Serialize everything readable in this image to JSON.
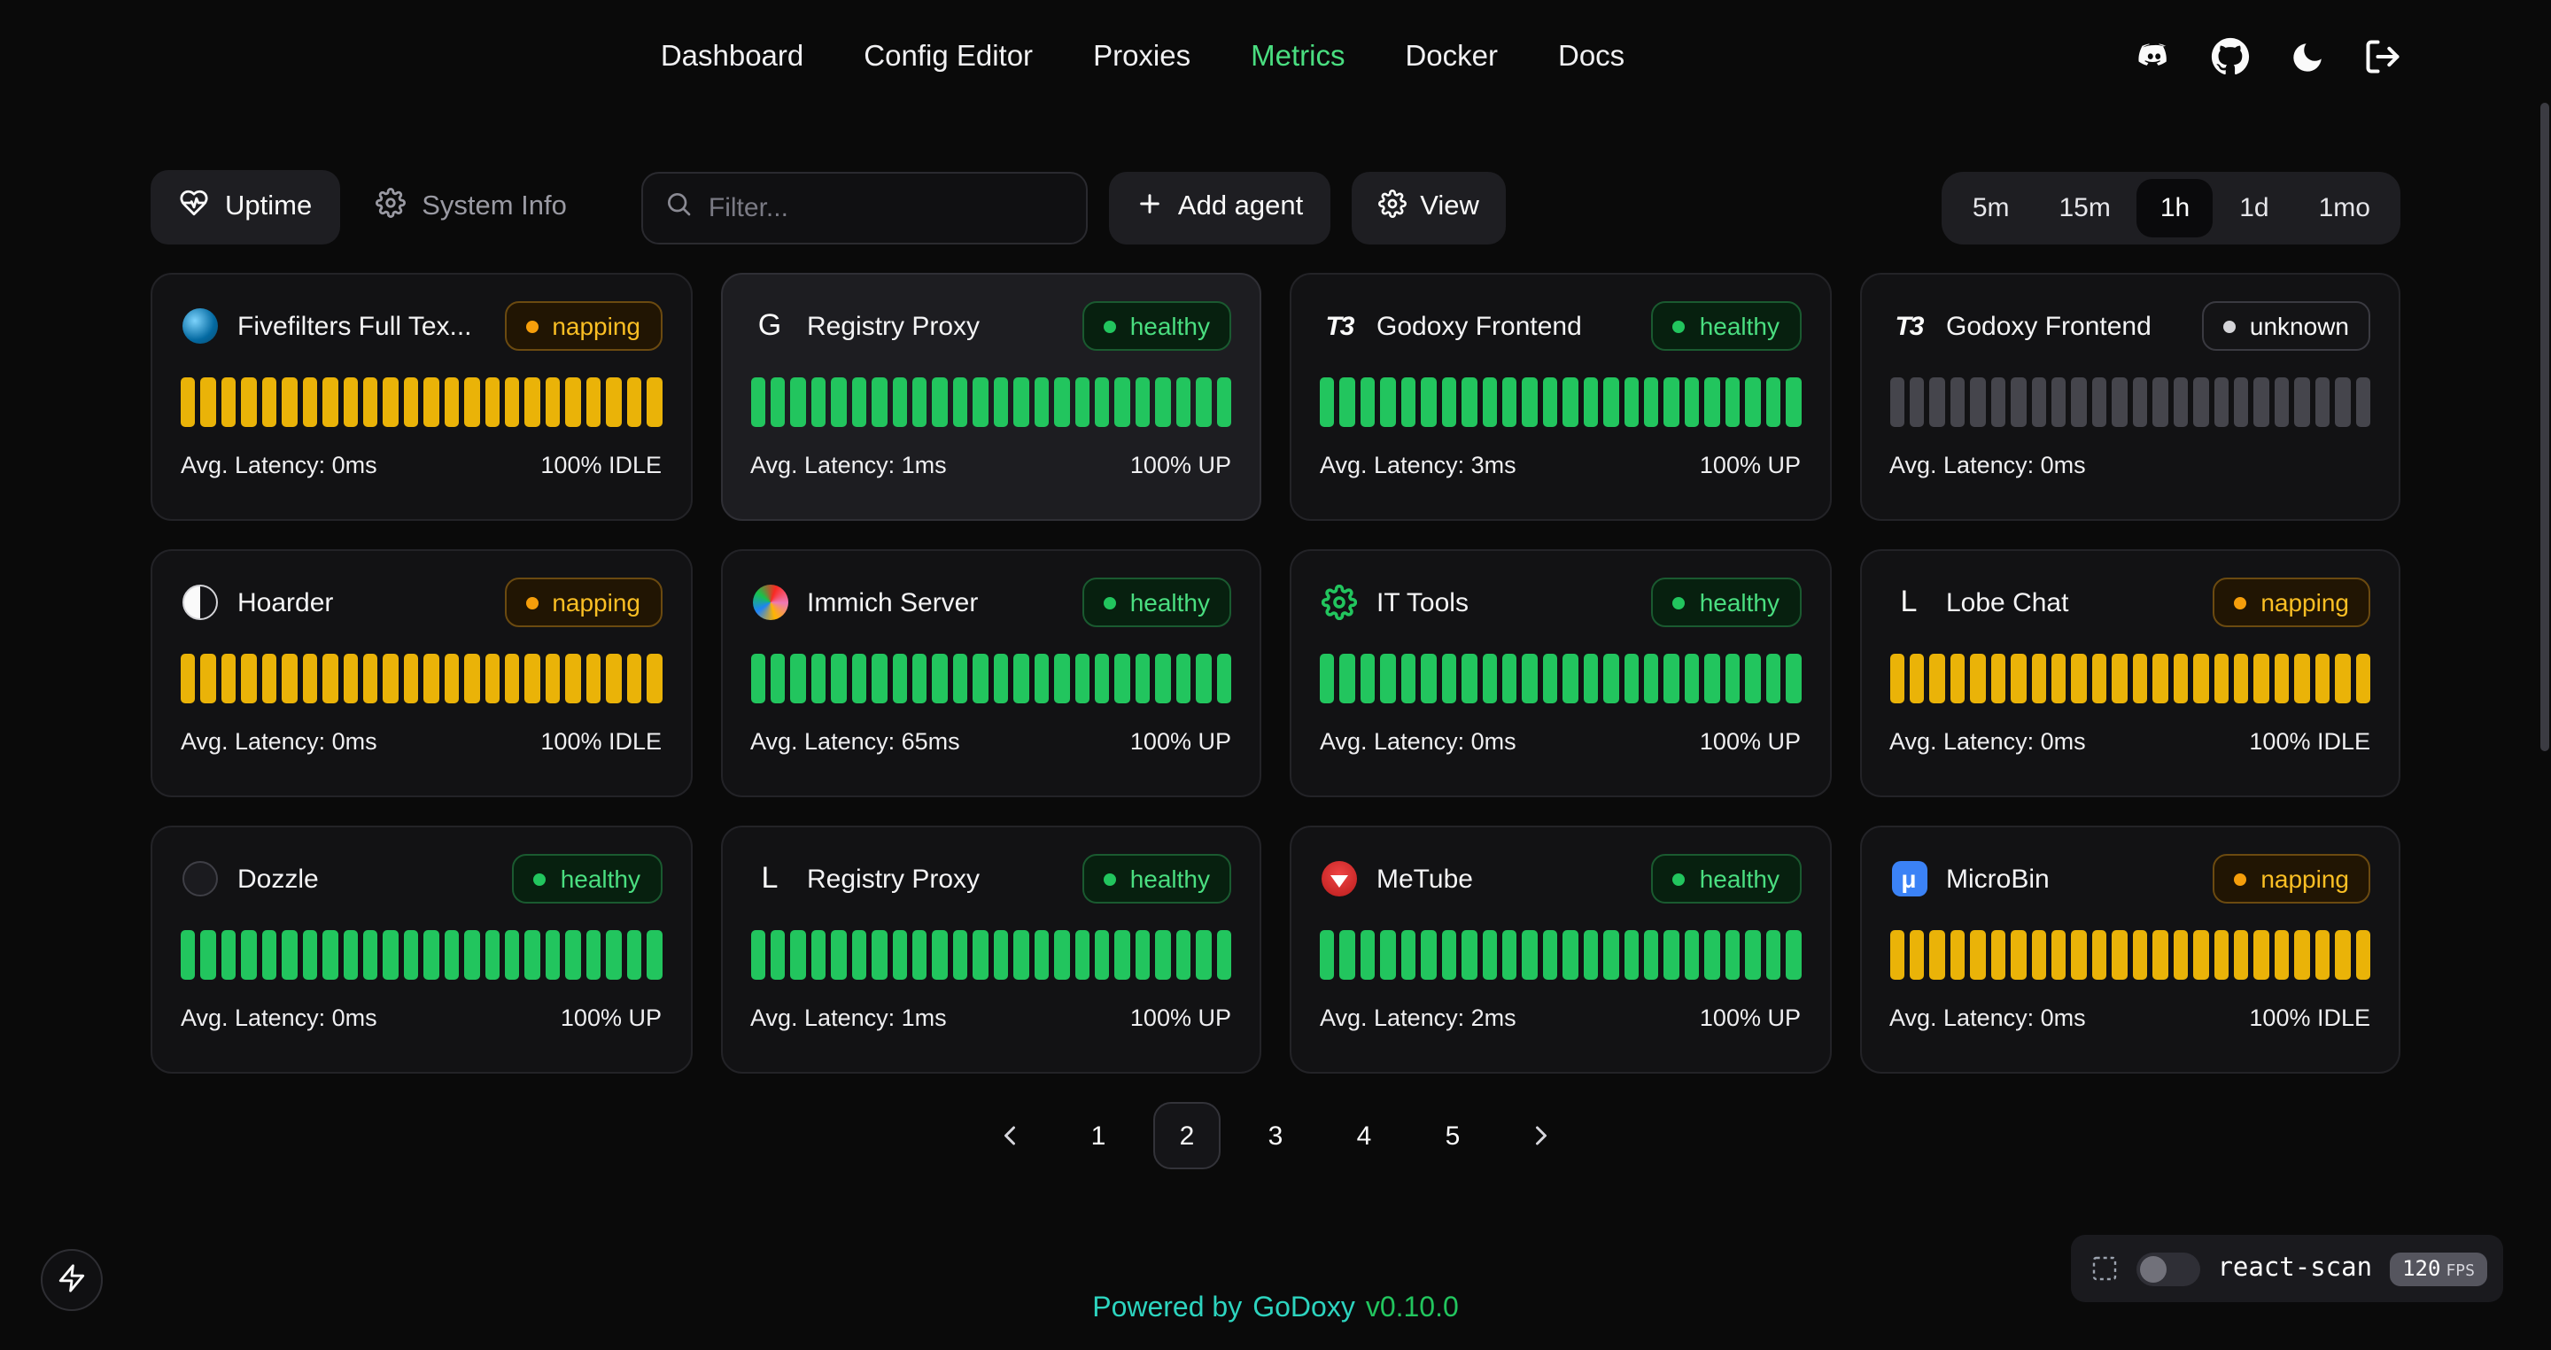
{
  "nav": {
    "items": [
      {
        "label": "Dashboard",
        "active": false
      },
      {
        "label": "Config Editor",
        "active": false
      },
      {
        "label": "Proxies",
        "active": false
      },
      {
        "label": "Metrics",
        "active": true
      },
      {
        "label": "Docker",
        "active": false
      },
      {
        "label": "Docs",
        "active": false
      }
    ],
    "icons": [
      "discord-icon",
      "github-icon",
      "moon-icon",
      "logout-icon"
    ]
  },
  "toolbar": {
    "tabs": [
      {
        "label": "Uptime",
        "icon": "heart-pulse-icon",
        "active": true
      },
      {
        "label": "System Info",
        "icon": "gauge-icon",
        "active": false
      }
    ],
    "filter": {
      "placeholder": "Filter...",
      "value": "",
      "icon": "search-icon"
    },
    "add_agent_label": "Add agent",
    "add_agent_icon": "plus-icon",
    "view_label": "View",
    "view_icon": "gear-icon",
    "ranges": [
      {
        "label": "5m",
        "active": false
      },
      {
        "label": "15m",
        "active": false
      },
      {
        "label": "1h",
        "active": true
      },
      {
        "label": "1d",
        "active": false
      },
      {
        "label": "1mo",
        "active": false
      }
    ]
  },
  "colors": {
    "up_bar": "#22c55e",
    "idle_bar": "#eab308",
    "unknown_bar": "#45454c",
    "accent_green": "#4ade80",
    "napping_amber": "#fbbf24",
    "footer_teal": "#2dd4bf",
    "footer_green": "#22c55e"
  },
  "cards": [
    {
      "name": "Fivefilters Full Tex...",
      "icon": "fivefilters-icon",
      "status": "napping",
      "bars": 24,
      "bar_kind": "idle",
      "latency": "Avg. Latency: 0ms",
      "uptime": "100% IDLE",
      "highlighted": false
    },
    {
      "name": "Registry Proxy",
      "icon": "letter-g-icon",
      "status": "healthy",
      "bars": 24,
      "bar_kind": "up",
      "latency": "Avg. Latency: 1ms",
      "uptime": "100% UP",
      "highlighted": true
    },
    {
      "name": "Godoxy Frontend",
      "icon": "t3-icon",
      "status": "healthy",
      "bars": 24,
      "bar_kind": "up",
      "latency": "Avg. Latency: 3ms",
      "uptime": "100% UP",
      "highlighted": false
    },
    {
      "name": "Godoxy Frontend",
      "icon": "t3-icon",
      "status": "unknown",
      "bars": 24,
      "bar_kind": "unknown",
      "latency": "Avg. Latency: 0ms",
      "uptime": "",
      "highlighted": false
    },
    {
      "name": "Hoarder",
      "icon": "hoarder-icon",
      "status": "napping",
      "bars": 24,
      "bar_kind": "idle",
      "latency": "Avg. Latency: 0ms",
      "uptime": "100% IDLE",
      "highlighted": false
    },
    {
      "name": "Immich Server",
      "icon": "immich-icon",
      "status": "healthy",
      "bars": 24,
      "bar_kind": "up",
      "latency": "Avg. Latency: 65ms",
      "uptime": "100% UP",
      "highlighted": false
    },
    {
      "name": "IT Tools",
      "icon": "ittools-gear-icon",
      "status": "healthy",
      "bars": 24,
      "bar_kind": "up",
      "latency": "Avg. Latency: 0ms",
      "uptime": "100% UP",
      "highlighted": false
    },
    {
      "name": "Lobe Chat",
      "icon": "letter-l-icon",
      "status": "napping",
      "bars": 24,
      "bar_kind": "idle",
      "latency": "Avg. Latency: 0ms",
      "uptime": "100% IDLE",
      "highlighted": false
    },
    {
      "name": "Dozzle",
      "icon": "dozzle-icon",
      "status": "healthy",
      "bars": 24,
      "bar_kind": "up",
      "latency": "Avg. Latency: 0ms",
      "uptime": "100% UP",
      "highlighted": false
    },
    {
      "name": "Registry Proxy",
      "icon": "letter-l-icon",
      "status": "healthy",
      "bars": 24,
      "bar_kind": "up",
      "latency": "Avg. Latency: 1ms",
      "uptime": "100% UP",
      "highlighted": false
    },
    {
      "name": "MeTube",
      "icon": "metube-icon",
      "status": "healthy",
      "bars": 24,
      "bar_kind": "up",
      "latency": "Avg. Latency: 2ms",
      "uptime": "100% UP",
      "highlighted": false
    },
    {
      "name": "MicroBin",
      "icon": "microbin-icon",
      "status": "napping",
      "bars": 24,
      "bar_kind": "idle",
      "latency": "Avg. Latency: 0ms",
      "uptime": "100% IDLE",
      "highlighted": false
    }
  ],
  "pagination": {
    "prev_icon": "chevron-left-icon",
    "next_icon": "chevron-right-icon",
    "pages": [
      {
        "label": "1",
        "active": false
      },
      {
        "label": "2",
        "active": true
      },
      {
        "label": "3",
        "active": false
      },
      {
        "label": "4",
        "active": false
      },
      {
        "label": "5",
        "active": false
      }
    ]
  },
  "footer": {
    "powered_by": "Powered by",
    "brand": "GoDoxy",
    "version": "v0.10.0"
  },
  "react_scan": {
    "label": "react-scan",
    "fps_value": "120",
    "fps_unit": "FPS",
    "toggle_on": false
  }
}
